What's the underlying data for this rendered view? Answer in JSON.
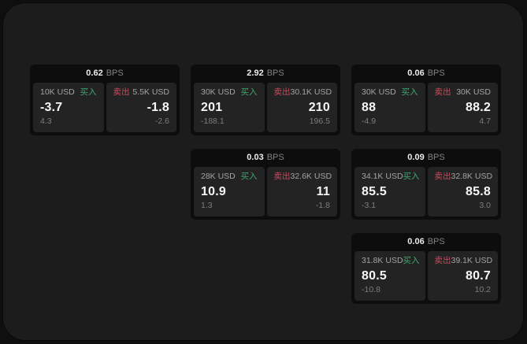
{
  "labels": {
    "buy": "买入",
    "sell": "卖出",
    "bps_unit": "BPS"
  },
  "colors": {
    "buy_green": "#42a56f",
    "sell_red": "#c94b5e",
    "panel_bg": "#1c1c1c",
    "card_bg": "#0d0d0d",
    "pane_bg": "#232323"
  },
  "cards": [
    {
      "bps": "0.62",
      "buy": {
        "amount": "10K USD",
        "value": "-3.7",
        "delta": "4.3"
      },
      "sell": {
        "amount": "5.5K USD",
        "value": "-1.8",
        "delta": "-2.6"
      }
    },
    {
      "bps": "2.92",
      "buy": {
        "amount": "30K USD",
        "value": "201",
        "delta": "-188.1"
      },
      "sell": {
        "amount": "30.1K USD",
        "value": "210",
        "delta": "196.5"
      }
    },
    {
      "bps": "0.06",
      "buy": {
        "amount": "30K USD",
        "value": "88",
        "delta": "-4.9"
      },
      "sell": {
        "amount": "30K USD",
        "value": "88.2",
        "delta": "4.7"
      }
    },
    {
      "bps": "0.03",
      "buy": {
        "amount": "28K USD",
        "value": "10.9",
        "delta": "1.3"
      },
      "sell": {
        "amount": "32.6K USD",
        "value": "11",
        "delta": "-1.8"
      }
    },
    {
      "bps": "0.09",
      "buy": {
        "amount": "34.1K USD",
        "value": "85.5",
        "delta": "-3.1"
      },
      "sell": {
        "amount": "32.8K USD",
        "value": "85.8",
        "delta": "3.0"
      }
    },
    {
      "bps": "0.06",
      "buy": {
        "amount": "31.8K USD",
        "value": "80.5",
        "delta": "-10.8"
      },
      "sell": {
        "amount": "39.1K USD",
        "value": "80.7",
        "delta": "10.2"
      }
    }
  ]
}
